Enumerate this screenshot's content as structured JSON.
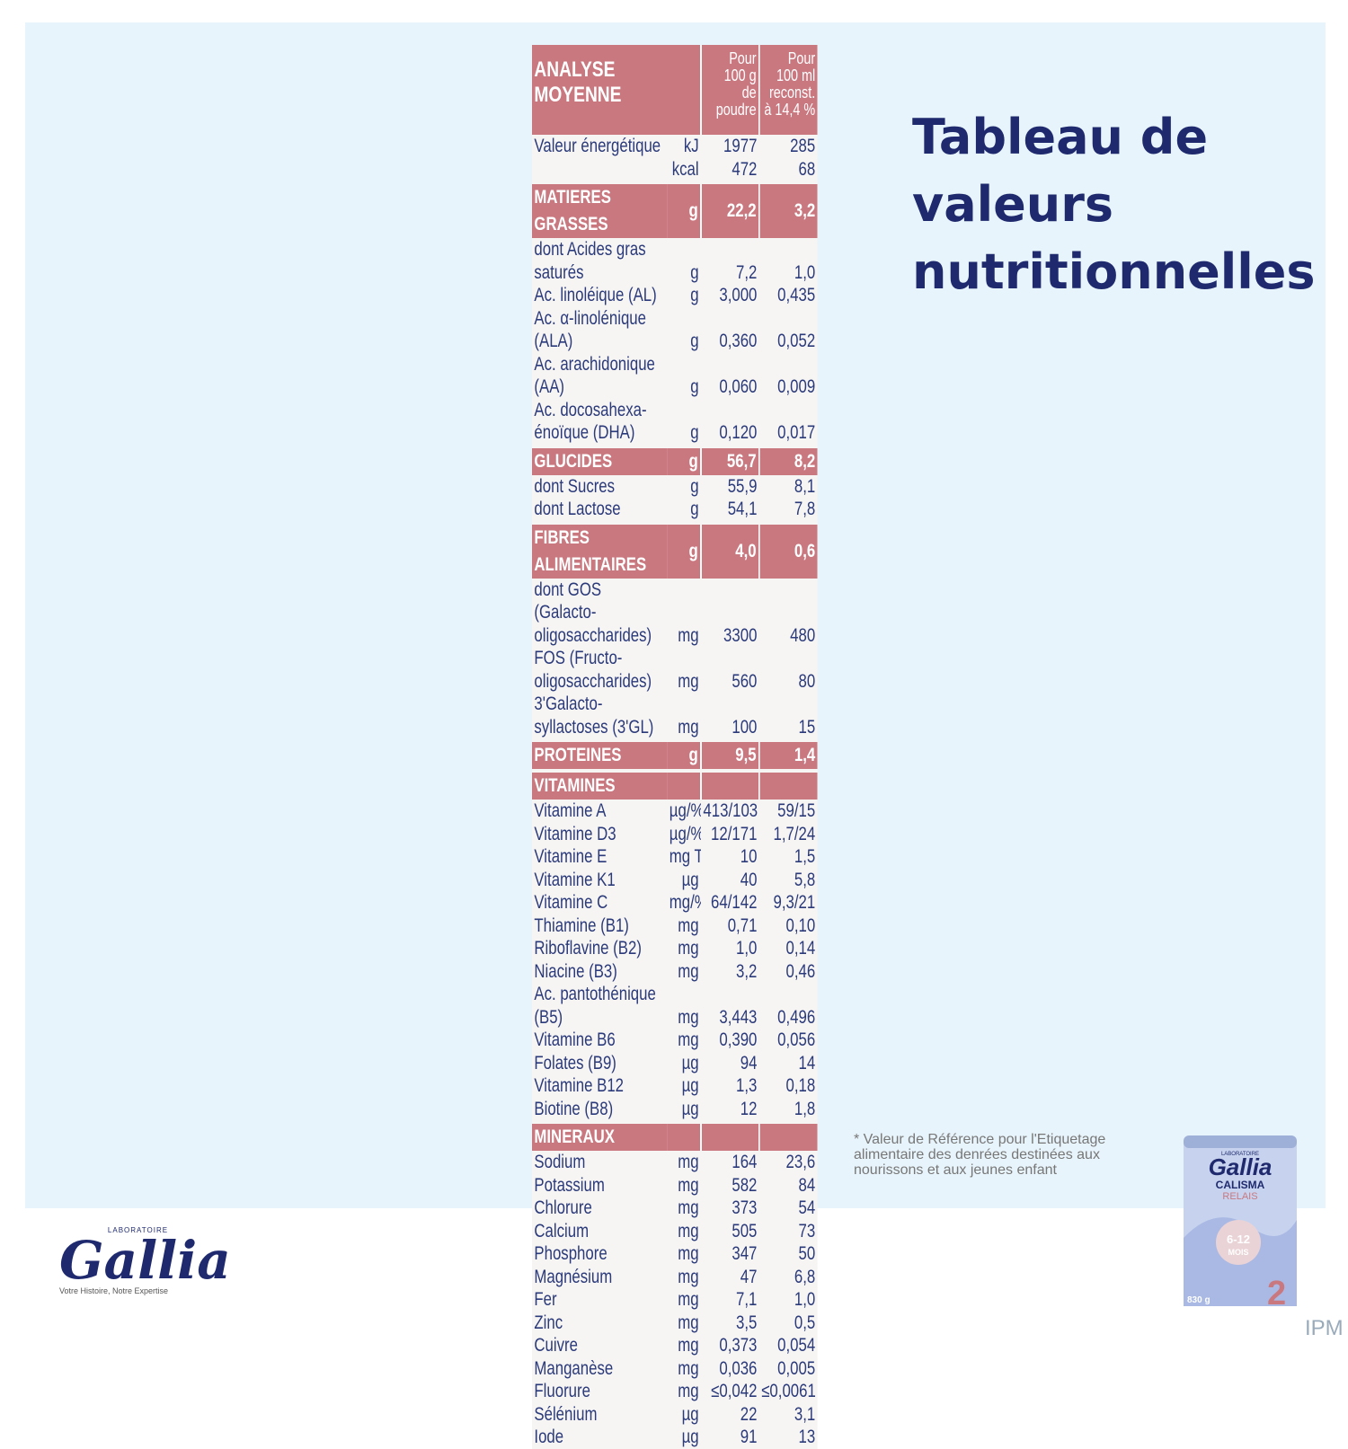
{
  "title_lines": [
    "Tableau de",
    "valeurs",
    "nutritionnelles"
  ],
  "table": {
    "header": [
      "ANALYSE\nMOYENNE",
      "Pour\n100 g\nde\npoudre",
      "Pour\n100 ml\nreconst.\nà 14,4 %"
    ],
    "rows": [
      {
        "label": "Valeur énergétique",
        "unit": "kJ",
        "per_100g": "1977",
        "per_100ml": "285"
      },
      {
        "unit": "kcal",
        "per_100g": "472",
        "per_100ml": "68"
      },
      {
        "style": "section",
        "label": "MATIERES GRASSES",
        "unit": "g",
        "per_100g": "22,2",
        "per_100ml": "3,2"
      },
      {
        "label": "dont Acides gras saturés",
        "unit": "g",
        "per_100g": "7,2",
        "per_100ml": "1,0"
      },
      {
        "label": "Ac. linoléique (AL)",
        "unit": "g",
        "per_100g": "3,000",
        "per_100ml": "0,435"
      },
      {
        "label": "Ac. α-linolénique (ALA)",
        "unit": "g",
        "per_100g": "0,360",
        "per_100ml": "0,052"
      },
      {
        "label": "Ac. arachidonique (AA)",
        "unit": "g",
        "per_100g": "0,060",
        "per_100ml": "0,009"
      },
      {
        "label": "Ac. docosahexa-\nénoïque (DHA)",
        "unit": "g",
        "per_100g": "0,120",
        "per_100ml": "0,017"
      },
      {
        "style": "section",
        "label": "GLUCIDES",
        "unit": "g",
        "per_100g": "56,7",
        "per_100ml": "8,2"
      },
      {
        "label": "dont Sucres",
        "unit": "g",
        "per_100g": "55,9",
        "per_100ml": "8,1"
      },
      {
        "label": "dont Lactose",
        "unit": "g",
        "per_100g": "54,1",
        "per_100ml": "7,8"
      },
      {
        "style": "section",
        "label": "FIBRES ALIMENTAIRES",
        "unit": "g",
        "per_100g": "4,0",
        "per_100ml": "0,6"
      },
      {
        "label": "dont GOS (Galacto-\noligosaccharides)",
        "unit": "mg",
        "per_100g": "3300",
        "per_100ml": "480"
      },
      {
        "label": "FOS (Fructo-\noligosaccharides)",
        "unit": "mg",
        "per_100g": "560",
        "per_100ml": "80"
      },
      {
        "label": "3'Galacto-\nsyllactoses (3'GL)",
        "unit": "mg",
        "per_100g": "100",
        "per_100ml": "15"
      },
      {
        "style": "section",
        "label": "PROTEINES",
        "unit": "g",
        "per_100g": "9,5",
        "per_100ml": "1,4"
      },
      {
        "style": "section",
        "label": "VITAMINES"
      },
      {
        "label": "Vitamine A",
        "unit": "µg/% VRE*",
        "per_100g": "413/103",
        "per_100ml": "59/15"
      },
      {
        "label": "Vitamine D3",
        "unit": "µg/% VRE*",
        "per_100g": "12/171",
        "per_100ml": "1,7/24"
      },
      {
        "label": "Vitamine E",
        "unit": "mg TE",
        "per_100g": "10",
        "per_100ml": "1,5"
      },
      {
        "label": "Vitamine K1",
        "unit": "µg",
        "per_100g": "40",
        "per_100ml": "5,8"
      },
      {
        "label": "Vitamine C",
        "unit": "mg/% VRE*",
        "per_100g": "64/142",
        "per_100ml": "9,3/21"
      },
      {
        "label": "Thiamine (B1)",
        "unit": "mg",
        "per_100g": "0,71",
        "per_100ml": "0,10"
      },
      {
        "label": "Riboflavine (B2)",
        "unit": "mg",
        "per_100g": "1,0",
        "per_100ml": "0,14"
      },
      {
        "label": "Niacine (B3)",
        "unit": "mg",
        "per_100g": "3,2",
        "per_100ml": "0,46"
      },
      {
        "label": "Ac. pantothénique (B5)",
        "unit": "mg",
        "per_100g": "3,443",
        "per_100ml": "0,496"
      },
      {
        "label": "Vitamine B6",
        "unit": "mg",
        "per_100g": "0,390",
        "per_100ml": "0,056"
      },
      {
        "label": "Folates (B9)",
        "unit": "µg",
        "per_100g": "94",
        "per_100ml": "14"
      },
      {
        "label": "Vitamine B12",
        "unit": "µg",
        "per_100g": "1,3",
        "per_100ml": "0,18"
      },
      {
        "label": "Biotine (B8)",
        "unit": "µg",
        "per_100g": "12",
        "per_100ml": "1,8"
      },
      {
        "style": "section",
        "label": "MINERAUX"
      },
      {
        "label": "Sodium",
        "unit": "mg",
        "per_100g": "164",
        "per_100ml": "23,6"
      },
      {
        "label": "Potassium",
        "unit": "mg",
        "per_100g": "582",
        "per_100ml": "84"
      },
      {
        "label": "Chlorure",
        "unit": "mg",
        "per_100g": "373",
        "per_100ml": "54"
      },
      {
        "label": "Calcium",
        "unit": "mg",
        "per_100g": "505",
        "per_100ml": "73"
      },
      {
        "label": "Phosphore",
        "unit": "mg",
        "per_100g": "347",
        "per_100ml": "50"
      },
      {
        "label": "Magnésium",
        "unit": "mg",
        "per_100g": "47",
        "per_100ml": "6,8"
      },
      {
        "label": "Fer",
        "unit": "mg",
        "per_100g": "7,1",
        "per_100ml": "1,0"
      },
      {
        "label": "Zinc",
        "unit": "mg",
        "per_100g": "3,5",
        "per_100ml": "0,5"
      },
      {
        "label": "Cuivre",
        "unit": "mg",
        "per_100g": "0,373",
        "per_100ml": "0,054"
      },
      {
        "label": "Manganèse",
        "unit": "mg",
        "per_100g": "0,036",
        "per_100ml": "0,005"
      },
      {
        "label": "Fluorure",
        "unit": "mg",
        "per_100g": "≤0,042",
        "per_100ml": "≤0,0061"
      },
      {
        "label": "Sélénium",
        "unit": "µg",
        "per_100g": "22",
        "per_100ml": "3,1"
      },
      {
        "label": "Iode",
        "unit": "µg",
        "per_100g": "91",
        "per_100ml": "13"
      }
    ]
  },
  "footnote": "* Valeur de Référence pour l'Etiquetage alimentaire des denrées destinées aux nourissons et aux jeunes enfant",
  "logo": {
    "lab": "LABORATOIRE",
    "brand": "Gallia",
    "tagline": "Votre Histoire, Notre Expertise"
  },
  "product": {
    "lab": "LABORATOIRE",
    "brand": "Gallia",
    "line1": "CALISMA",
    "line2": "RELAIS",
    "age": "6-12",
    "age_unit": "MOIS",
    "weight": "830 g",
    "stage": "2"
  },
  "watermark": "IPM"
}
